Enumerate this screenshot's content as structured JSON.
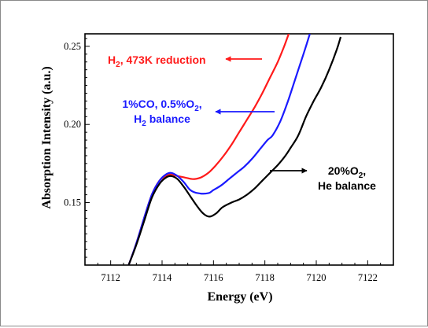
{
  "chart_data": {
    "type": "line",
    "title": "",
    "xlabel": "Energy (eV)",
    "ylabel": "Absorption Intensity (a.u.)",
    "xlim": [
      7111.0,
      7123.0
    ],
    "ylim": [
      0.11,
      0.258
    ],
    "x_ticks": [
      7112,
      7114,
      7116,
      7118,
      7120,
      7122
    ],
    "y_ticks": [
      0.15,
      0.2,
      0.25
    ],
    "x_tick_labels": [
      "7112",
      "7114",
      "7116",
      "7118",
      "7120",
      "7122"
    ],
    "y_tick_labels": [
      "0.15",
      "0.20",
      "0.25"
    ],
    "grid": false,
    "series": [
      {
        "color": "#ff1a1a",
        "x": [
          7112.7,
          7113.0,
          7113.3,
          7113.6,
          7113.9,
          7114.15,
          7114.35,
          7114.6,
          7114.9,
          7115.2,
          7115.5,
          7115.8,
          7116.1,
          7116.4,
          7116.7,
          7117.0,
          7117.3,
          7117.6,
          7117.9,
          7118.2,
          7118.5,
          7118.75,
          7118.95
        ],
        "y": [
          0.11,
          0.124,
          0.14,
          0.155,
          0.164,
          0.167,
          0.168,
          0.167,
          0.166,
          0.165,
          0.166,
          0.169,
          0.174,
          0.18,
          0.187,
          0.195,
          0.203,
          0.211,
          0.22,
          0.23,
          0.24,
          0.25,
          0.259
        ]
      },
      {
        "color": "#1a1aff",
        "x": [
          7112.7,
          7113.0,
          7113.3,
          7113.6,
          7113.9,
          7114.15,
          7114.35,
          7114.6,
          7114.85,
          7115.1,
          7115.4,
          7115.8,
          7116.0,
          7116.3,
          7116.6,
          7116.9,
          7117.2,
          7117.5,
          7117.8,
          7118.1,
          7118.3,
          7118.6,
          7118.9,
          7119.2,
          7119.5,
          7119.75
        ],
        "y": [
          0.11,
          0.124,
          0.14,
          0.155,
          0.164,
          0.168,
          0.169,
          0.167,
          0.163,
          0.158,
          0.156,
          0.156,
          0.158,
          0.161,
          0.165,
          0.169,
          0.173,
          0.178,
          0.184,
          0.19,
          0.193,
          0.202,
          0.215,
          0.23,
          0.245,
          0.258
        ]
      },
      {
        "color": "#000000",
        "x": [
          7112.7,
          7113.0,
          7113.3,
          7113.6,
          7113.9,
          7114.15,
          7114.35,
          7114.6,
          7114.85,
          7115.1,
          7115.35,
          7115.6,
          7115.85,
          7116.1,
          7116.35,
          7116.7,
          7117.0,
          7117.3,
          7117.6,
          7117.9,
          7118.2,
          7118.5,
          7118.8,
          7119.0,
          7119.3,
          7119.6,
          7119.9,
          7120.2,
          7120.5,
          7120.8,
          7120.95
        ],
        "y": [
          0.11,
          0.123,
          0.138,
          0.153,
          0.162,
          0.166,
          0.167,
          0.165,
          0.16,
          0.154,
          0.148,
          0.143,
          0.141,
          0.143,
          0.147,
          0.15,
          0.152,
          0.155,
          0.159,
          0.164,
          0.169,
          0.174,
          0.18,
          0.185,
          0.193,
          0.205,
          0.215,
          0.224,
          0.235,
          0.248,
          0.256
        ]
      }
    ],
    "annotations": [
      {
        "key": "a1",
        "color": "#ff1a1a",
        "lines": [
          [
            [
              "H",
              false
            ],
            [
              "2",
              true
            ],
            [
              ", 473K reduction",
              false
            ]
          ]
        ]
      },
      {
        "key": "a2",
        "color": "#1a1aff",
        "lines": [
          [
            [
              "1%CO, 0.5%O",
              false
            ],
            [
              "2",
              true
            ],
            [
              ",",
              false
            ]
          ],
          [
            [
              "H",
              false
            ],
            [
              "2",
              true
            ],
            [
              " balance",
              false
            ]
          ]
        ]
      },
      {
        "key": "a3",
        "color": "#000000",
        "lines": [
          [
            [
              "20%O",
              false
            ],
            [
              "2",
              true
            ],
            [
              ",",
              false
            ]
          ],
          [
            [
              "He balance",
              false
            ]
          ]
        ]
      }
    ]
  }
}
